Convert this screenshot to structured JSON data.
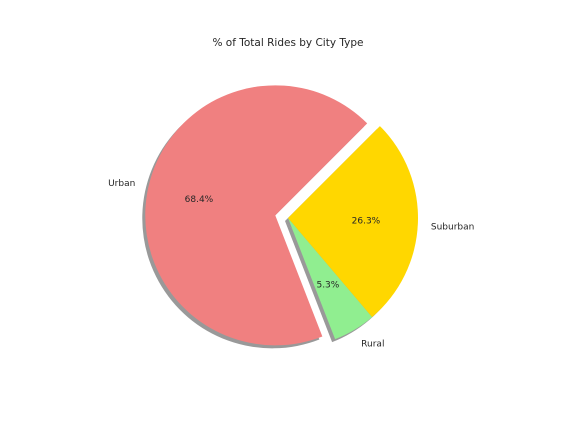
{
  "chart_data": {
    "type": "pie",
    "title": "% of Total Rides by City Type",
    "slices": [
      {
        "label": "Urban",
        "value": 68.4,
        "pct_label": "68.4%",
        "color": "#f08080",
        "explode": true
      },
      {
        "label": "Rural",
        "value": 5.3,
        "pct_label": "5.3%",
        "color": "#90ee90",
        "explode": false
      },
      {
        "label": "Suburban",
        "value": 26.3,
        "pct_label": "26.3%",
        "color": "#ffd700",
        "explode": false
      }
    ],
    "shadow": true,
    "legend": "none"
  }
}
